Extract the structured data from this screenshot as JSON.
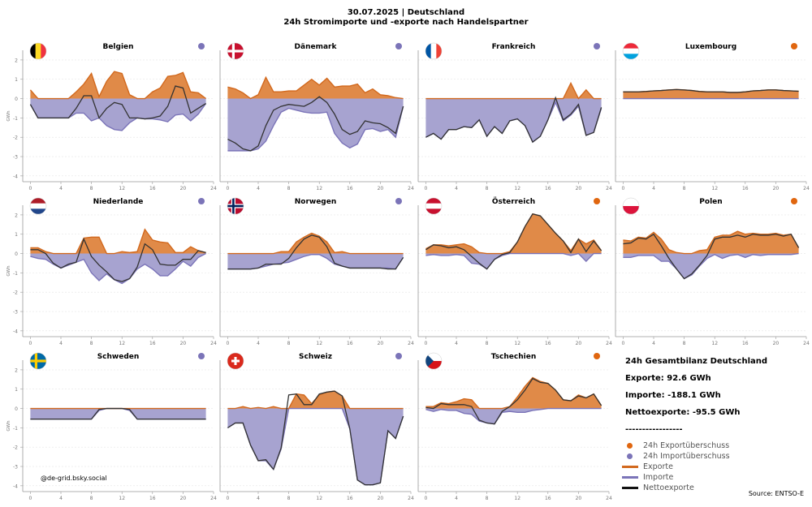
{
  "header": {
    "line1": "30.07.2025 | Deutschland",
    "line2": "24h Stromimporte und -exporte nach Handelspartner"
  },
  "colors": {
    "export": "#e08a48",
    "export_line": "#d2691e",
    "import": "#a7a3d0",
    "import_line": "#7b74b8",
    "net": "#333333",
    "export_surplus": "#e0660f",
    "import_surplus": "#7b74b8"
  },
  "chart_data": {
    "type": "area",
    "unit": "GWh",
    "ylabel": "GWh",
    "ylim": [
      -4.3,
      2.5
    ],
    "yticks": [
      -4,
      -3,
      -2,
      -1,
      0,
      1,
      2
    ],
    "xlim": [
      -1,
      24
    ],
    "xticks": [
      0,
      4,
      8,
      12,
      16,
      20,
      24
    ],
    "panels": [
      {
        "name": "Belgien",
        "flag": "be",
        "surplus": "import",
        "export": [
          0.45,
          0,
          0,
          0,
          0,
          0,
          0.35,
          0.75,
          1.3,
          0.1,
          0.9,
          1.4,
          1.3,
          0.2,
          0,
          0,
          0.35,
          0.55,
          1.15,
          1.2,
          1.35,
          0.35,
          0.3,
          0
        ],
        "import": [
          -0.3,
          -1.0,
          -1.0,
          -1.0,
          -1.0,
          -1.0,
          -0.75,
          -0.75,
          -1.15,
          -1.0,
          -1.4,
          -1.6,
          -1.65,
          -1.25,
          -1.0,
          -1.05,
          -1.05,
          -1.1,
          -1.2,
          -0.85,
          -0.8,
          -1.15,
          -0.8,
          -0.25
        ],
        "net": [
          -0.3,
          -1.0,
          -1.0,
          -1.0,
          -1.0,
          -1.0,
          -0.5,
          0.15,
          0.15,
          -1.0,
          -0.5,
          -0.2,
          -0.3,
          -1.0,
          -1.0,
          -1.05,
          -1.0,
          -0.9,
          -0.4,
          0.65,
          0.55,
          -0.75,
          -0.5,
          -0.25
        ]
      },
      {
        "name": "Dänemark",
        "flag": "dk",
        "surplus": "import",
        "export": [
          0.6,
          0.5,
          0.3,
          0,
          0.2,
          1.1,
          0.35,
          0.35,
          0.4,
          0.4,
          0.7,
          1.0,
          0.7,
          1.05,
          0.6,
          0.65,
          0.65,
          0.75,
          0.3,
          0.5,
          0.2,
          0.15,
          0.05,
          0
        ],
        "import": [
          -2.7,
          -2.7,
          -2.7,
          -2.7,
          -2.6,
          -2.2,
          -1.4,
          -0.7,
          -0.5,
          -0.6,
          -0.7,
          -0.75,
          -0.75,
          -0.7,
          -1.8,
          -2.3,
          -2.55,
          -2.35,
          -1.6,
          -1.55,
          -1.7,
          -1.6,
          -2.0,
          -0.4
        ],
        "net": [
          -2.1,
          -2.3,
          -2.6,
          -2.7,
          -2.45,
          -1.4,
          -0.6,
          -0.4,
          -0.3,
          -0.35,
          -0.4,
          -0.2,
          0.1,
          -0.2,
          -0.8,
          -1.6,
          -1.85,
          -1.7,
          -1.15,
          -1.25,
          -1.3,
          -1.5,
          -1.8,
          -0.4
        ]
      },
      {
        "name": "Frankreich",
        "flag": "fr",
        "surplus": "import",
        "export": [
          0,
          0,
          0,
          0,
          0,
          0,
          0,
          0,
          0,
          0,
          0,
          0,
          0,
          0,
          0,
          0,
          0,
          0,
          0,
          0.8,
          0,
          0.45,
          0,
          0
        ],
        "import": [
          -2.0,
          -1.8,
          -2.1,
          -1.6,
          -1.6,
          -1.45,
          -1.5,
          -1.1,
          -1.95,
          -1.45,
          -1.8,
          -1.15,
          -1.05,
          -1.4,
          -2.25,
          -1.95,
          -1.1,
          -0.2,
          -1.15,
          -0.85,
          -0.4,
          -1.9,
          -1.75,
          -0.5
        ],
        "net": [
          -2.0,
          -1.8,
          -2.1,
          -1.6,
          -1.6,
          -1.45,
          -1.5,
          -1.1,
          -1.95,
          -1.45,
          -1.8,
          -1.15,
          -1.05,
          -1.4,
          -2.25,
          -1.95,
          -1.1,
          0.05,
          -1.1,
          -0.8,
          -0.3,
          -1.9,
          -1.75,
          -0.45
        ]
      },
      {
        "name": "Luxembourg",
        "flag": "lu",
        "surplus": "export",
        "export": [
          0.35,
          0.35,
          0.35,
          0.37,
          0.4,
          0.42,
          0.45,
          0.47,
          0.45,
          0.42,
          0.37,
          0.35,
          0.35,
          0.35,
          0.32,
          0.32,
          0.35,
          0.4,
          0.42,
          0.45,
          0.45,
          0.42,
          0.4,
          0.38
        ],
        "import": [
          0,
          0,
          0,
          0,
          0,
          0,
          0,
          0,
          0,
          0,
          0,
          0,
          0,
          0,
          0,
          0,
          0,
          0,
          0,
          0,
          0,
          0,
          0,
          0
        ],
        "net": [
          0.35,
          0.35,
          0.35,
          0.37,
          0.4,
          0.42,
          0.45,
          0.47,
          0.45,
          0.42,
          0.37,
          0.35,
          0.35,
          0.35,
          0.32,
          0.32,
          0.35,
          0.4,
          0.42,
          0.45,
          0.45,
          0.42,
          0.4,
          0.38
        ]
      },
      {
        "name": "Niederlande",
        "flag": "nl",
        "surplus": "import",
        "export": [
          0.3,
          0.3,
          0.1,
          0,
          0,
          0,
          0,
          0.8,
          0.85,
          0.85,
          0,
          0,
          0.1,
          0.05,
          0.1,
          1.25,
          0.7,
          0.6,
          0.55,
          0.05,
          0.05,
          0.35,
          0.15,
          0.05
        ],
        "import": [
          -0.15,
          -0.25,
          -0.3,
          -0.55,
          -0.75,
          -0.6,
          -0.45,
          -0.3,
          -1.0,
          -1.4,
          -1.05,
          -1.35,
          -1.55,
          -1.3,
          -0.8,
          -0.55,
          -0.8,
          -1.15,
          -1.15,
          -0.8,
          -0.4,
          -0.65,
          -0.2,
          0
        ],
        "net": [
          0.2,
          0.2,
          0,
          -0.5,
          -0.75,
          -0.55,
          -0.45,
          0.75,
          -0.15,
          -0.6,
          -0.95,
          -1.35,
          -1.45,
          -1.3,
          -0.7,
          0.5,
          0.2,
          -0.55,
          -0.6,
          -0.6,
          -0.3,
          -0.3,
          0.15,
          0.05
        ]
      },
      {
        "name": "Norwegen",
        "flag": "no",
        "surplus": "import",
        "export": [
          0,
          0,
          0,
          0,
          0,
          0,
          0,
          0.1,
          0.1,
          0.6,
          0.85,
          1.05,
          0.9,
          0.6,
          0.05,
          0.1,
          0,
          0,
          0,
          0,
          0,
          0,
          0,
          0
        ],
        "import": [
          -0.8,
          -0.8,
          -0.8,
          -0.8,
          -0.75,
          -0.65,
          -0.55,
          -0.5,
          -0.45,
          -0.3,
          -0.15,
          -0.05,
          -0.05,
          -0.25,
          -0.55,
          -0.65,
          -0.75,
          -0.75,
          -0.75,
          -0.75,
          -0.75,
          -0.75,
          -0.8,
          -0.2
        ],
        "net": [
          -0.8,
          -0.8,
          -0.8,
          -0.8,
          -0.75,
          -0.55,
          -0.55,
          -0.55,
          -0.25,
          0.3,
          0.75,
          0.95,
          0.85,
          0.35,
          -0.5,
          -0.65,
          -0.75,
          -0.75,
          -0.75,
          -0.75,
          -0.75,
          -0.8,
          -0.8,
          -0.2
        ]
      },
      {
        "name": "Österreich",
        "flag": "at",
        "surplus": "export",
        "export": [
          0.25,
          0.45,
          0.45,
          0.4,
          0.45,
          0.5,
          0.35,
          0.05,
          0,
          0,
          0,
          0.1,
          0.6,
          1.4,
          2.05,
          1.95,
          1.5,
          1.05,
          0.65,
          0.15,
          0.75,
          0.5,
          0.7,
          0.15
        ],
        "import": [
          -0.1,
          -0.05,
          -0.1,
          -0.1,
          -0.05,
          -0.1,
          -0.5,
          -0.55,
          -0.8,
          -0.3,
          -0.1,
          0,
          0,
          0,
          0,
          0,
          0,
          0,
          0,
          -0.1,
          0,
          -0.4,
          0,
          0
        ],
        "net": [
          0.2,
          0.45,
          0.4,
          0.3,
          0.35,
          0.2,
          -0.15,
          -0.5,
          -0.8,
          -0.3,
          -0.05,
          0.05,
          0.6,
          1.4,
          2.05,
          1.95,
          1.5,
          1.05,
          0.65,
          0.05,
          0.75,
          0.1,
          0.65,
          0.15
        ]
      },
      {
        "name": "Polen",
        "flag": "pl",
        "surplus": "export",
        "export": [
          0.7,
          0.65,
          0.85,
          0.8,
          1.1,
          0.75,
          0.2,
          0.05,
          0,
          0,
          0.15,
          0.2,
          0.85,
          0.95,
          0.95,
          1.15,
          1.0,
          1.05,
          1.0,
          1.0,
          1.05,
          0.95,
          1.0,
          0.3
        ],
        "import": [
          -0.2,
          -0.2,
          -0.1,
          -0.1,
          -0.1,
          -0.4,
          -0.4,
          -0.8,
          -1.3,
          -1.1,
          -0.65,
          -0.25,
          -0.05,
          -0.25,
          -0.1,
          -0.05,
          -0.2,
          -0.05,
          -0.1,
          -0.05,
          -0.05,
          -0.05,
          -0.05,
          0
        ],
        "net": [
          0.5,
          0.55,
          0.8,
          0.75,
          1.0,
          0.4,
          -0.25,
          -0.8,
          -1.3,
          -1.05,
          -0.6,
          -0.1,
          0.75,
          0.85,
          0.85,
          0.95,
          0.85,
          1.0,
          0.95,
          0.95,
          1.0,
          0.9,
          1.0,
          0.3
        ]
      },
      {
        "name": "Schweden",
        "flag": "se",
        "surplus": "import",
        "export": [
          0,
          0,
          0,
          0,
          0,
          0,
          0,
          0,
          0,
          0,
          0,
          0,
          0,
          0,
          0,
          0,
          0,
          0,
          0,
          0,
          0,
          0,
          0,
          0
        ],
        "import": [
          -0.55,
          -0.55,
          -0.55,
          -0.55,
          -0.55,
          -0.55,
          -0.55,
          -0.55,
          -0.55,
          -0.1,
          0,
          0,
          0,
          -0.1,
          -0.55,
          -0.55,
          -0.55,
          -0.55,
          -0.55,
          -0.55,
          -0.55,
          -0.55,
          -0.55,
          -0.55
        ],
        "net": [
          -0.55,
          -0.55,
          -0.55,
          -0.55,
          -0.55,
          -0.55,
          -0.55,
          -0.55,
          -0.55,
          -0.05,
          0,
          0,
          0,
          -0.05,
          -0.55,
          -0.55,
          -0.55,
          -0.55,
          -0.55,
          -0.55,
          -0.55,
          -0.55,
          -0.55,
          -0.55
        ]
      },
      {
        "name": "Schweiz",
        "flag": "ch",
        "surplus": "import",
        "export": [
          0,
          0,
          0.1,
          0,
          0.05,
          0,
          0.1,
          0,
          0,
          0.75,
          0.7,
          0.25,
          0.7,
          0.85,
          0.9,
          0.65,
          0,
          0,
          0,
          0,
          0,
          0,
          0,
          0
        ],
        "import": [
          -1.0,
          -0.75,
          -0.75,
          -1.9,
          -2.7,
          -2.7,
          -3.15,
          -2.1,
          0,
          0,
          0,
          0,
          0,
          0,
          0,
          0,
          -1.05,
          -3.7,
          -3.95,
          -3.95,
          -3.85,
          -1.15,
          -1.55,
          -0.4
        ],
        "net": [
          -1.0,
          -0.75,
          -0.75,
          -1.9,
          -2.7,
          -2.65,
          -3.15,
          -2.05,
          0.7,
          0.75,
          0.2,
          0.2,
          0.75,
          0.85,
          0.9,
          0.65,
          -1.05,
          -3.7,
          -3.95,
          -3.95,
          -3.85,
          -1.15,
          -1.55,
          -0.4
        ]
      },
      {
        "name": "Tschechien",
        "flag": "cz",
        "surplus": "export",
        "export": [
          0.1,
          0.1,
          0.3,
          0.25,
          0.35,
          0.5,
          0.45,
          0,
          0,
          0,
          0,
          0.1,
          0.6,
          1.15,
          1.6,
          1.4,
          1.3,
          0.95,
          0.45,
          0.4,
          0.7,
          0.55,
          0.75,
          0.15
        ],
        "import": [
          -0.05,
          -0.15,
          -0.05,
          -0.1,
          -0.1,
          -0.25,
          -0.3,
          -0.65,
          -0.75,
          -0.8,
          -0.2,
          -0.15,
          -0.2,
          -0.2,
          -0.1,
          -0.05,
          0,
          0,
          0,
          0,
          0,
          0,
          0,
          0
        ],
        "net": [
          0.05,
          0.0,
          0.25,
          0.2,
          0.2,
          0.2,
          0.1,
          -0.6,
          -0.75,
          -0.8,
          -0.15,
          0.1,
          0.45,
          0.95,
          1.55,
          1.35,
          1.3,
          0.95,
          0.45,
          0.4,
          0.65,
          0.55,
          0.75,
          0.15
        ]
      }
    ]
  },
  "summary": {
    "title": "24h Gesamtbilanz Deutschland",
    "exporte": "Exporte: 92.6 GWh",
    "importe": "Importe: -188.1 GWh",
    "netto": "Nettoexporte: -95.5 GWh",
    "divider": "-----------------"
  },
  "legend": [
    {
      "label": "24h Exportüberschuss",
      "kind": "dot",
      "color": "#e0660f"
    },
    {
      "label": "24h Importüberschuss",
      "kind": "dot",
      "color": "#7b74b8"
    },
    {
      "label": "Exporte",
      "kind": "line",
      "color": "#d2691e"
    },
    {
      "label": "Importe",
      "kind": "line",
      "color": "#7b74b8"
    },
    {
      "label": "Nettoexporte",
      "kind": "line",
      "color": "#111111"
    }
  ],
  "credit": "@de-grid.bsky.social",
  "source": "Source: ENTSO-E"
}
